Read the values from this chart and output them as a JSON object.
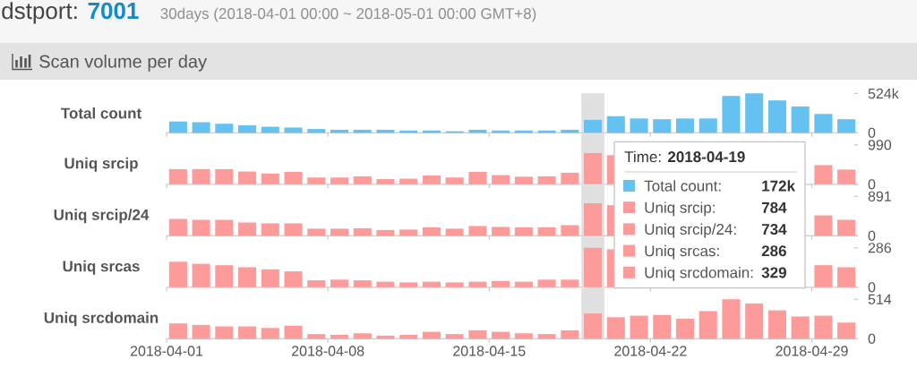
{
  "chart_data": [
    {
      "type": "bar",
      "title": "dstport: **7001**",
      "subtitle": "30days (2018-04-01 00:00 ~ 2018-05-01 00:00 GMT+8)",
      "annotations": [
        "Scan volume per day",
        "Time: **2018-04-19**",
        "Total count:",
        "172k"
      ],
      "ylabel": "Total count",
      "x": [
        "2018-04-01T12:00",
        "2018-04-02T12:00",
        "2018-04-03T12:00",
        "2018-04-04T12:00",
        "2018-04-05T12:00",
        "2018-04-06T12:00",
        "2018-04-07T12:00",
        "2018-04-08T12:00",
        "2018-04-09T12:00",
        "2018-04-10T12:00",
        "2018-04-11T12:00",
        "2018-04-12T12:00",
        "2018-04-13T12:00",
        "2018-04-14T12:00",
        "2018-04-15T12:00",
        "2018-04-16T12:00",
        "2018-04-17T12:00",
        "2018-04-18T12:00",
        "2018-04-19T12:00",
        "2018-04-20T12:00",
        "2018-04-21T12:00",
        "2018-04-22T12:00",
        "2018-04-23T12:00",
        "2018-04-24T12:00",
        "2018-04-25T12:00",
        "2018-04-26T12:00",
        "2018-04-27T12:00",
        "2018-04-28T12:00",
        "2018-04-29T12:00",
        "2018-04-30T12:00"
      ],
      "values": [
        150000,
        140000,
        120000,
        100000,
        80000,
        70000,
        50000,
        40000,
        40000,
        40000,
        30000,
        30000,
        20000,
        40000,
        30000,
        30000,
        30000,
        40000,
        172000,
        220000,
        190000,
        180000,
        190000,
        190000,
        490000,
        524000,
        430000,
        350000,
        250000,
        180000
      ],
      "color": "#64c1f0",
      "xlim": [
        "2018-04-01",
        "2018-05-01"
      ],
      "xticks": [
        "2018-04-01",
        "2018-04-08",
        "2018-04-15",
        "2018-04-22",
        "2018-04-29"
      ],
      "ylim": [
        0,
        524000
      ],
      "yticks": [
        0,
        {
          "value": 524000,
          "label": "524k"
        }
      ],
      "bands": [
        {
          "axis": "x",
          "from": "2018-04-19",
          "to": "2018-04-20",
          "color": "#e0e0e0"
        }
      ],
      "tick_labels": "y"
    },
    {
      "type": "bar",
      "annotations": [
        "Uniq srcip:",
        "784"
      ],
      "ylabel": "Uniq srcip",
      "x": [
        "2018-04-01T12:00",
        "2018-04-02T12:00",
        "2018-04-03T12:00",
        "2018-04-04T12:00",
        "2018-04-05T12:00",
        "2018-04-06T12:00",
        "2018-04-07T12:00",
        "2018-04-08T12:00",
        "2018-04-09T12:00",
        "2018-04-10T12:00",
        "2018-04-11T12:00",
        "2018-04-12T12:00",
        "2018-04-13T12:00",
        "2018-04-14T12:00",
        "2018-04-15T12:00",
        "2018-04-16T12:00",
        "2018-04-17T12:00",
        "2018-04-18T12:00",
        "2018-04-19T12:00",
        "2018-04-20T12:00",
        "2018-04-21T12:00",
        "2018-04-22T12:00",
        "2018-04-23T12:00",
        "2018-04-24T12:00",
        "2018-04-25T12:00",
        "2018-04-26T12:00",
        "2018-04-27T12:00",
        "2018-04-28T12:00",
        "2018-04-29T12:00",
        "2018-04-30T12:00"
      ],
      "values": [
        380,
        380,
        380,
        320,
        270,
        310,
        170,
        170,
        200,
        130,
        140,
        220,
        170,
        310,
        230,
        190,
        200,
        290,
        784,
        730,
        null,
        null,
        null,
        null,
        null,
        null,
        null,
        null,
        480,
        370
      ],
      "color": "#fd9a9a",
      "xlim": [
        "2018-04-01",
        "2018-05-01"
      ],
      "xticks": [
        "2018-04-01",
        "2018-04-08",
        "2018-04-15",
        "2018-04-22",
        "2018-04-29"
      ],
      "ylim": [
        0,
        990
      ],
      "yticks": [
        0,
        990
      ],
      "bands": [
        {
          "axis": "x",
          "from": "2018-04-19",
          "to": "2018-04-20",
          "color": "#e0e0e0"
        }
      ],
      "tick_labels": "y"
    },
    {
      "type": "bar",
      "annotations": [
        "Uniq srcip/24:",
        "734"
      ],
      "ylabel": "Uniq srcip/24",
      "x": [
        "2018-04-01T12:00",
        "2018-04-02T12:00",
        "2018-04-03T12:00",
        "2018-04-04T12:00",
        "2018-04-05T12:00",
        "2018-04-06T12:00",
        "2018-04-07T12:00",
        "2018-04-08T12:00",
        "2018-04-09T12:00",
        "2018-04-10T12:00",
        "2018-04-11T12:00",
        "2018-04-12T12:00",
        "2018-04-13T12:00",
        "2018-04-14T12:00",
        "2018-04-15T12:00",
        "2018-04-16T12:00",
        "2018-04-17T12:00",
        "2018-04-18T12:00",
        "2018-04-19T12:00",
        "2018-04-20T12:00",
        "2018-04-21T12:00",
        "2018-04-22T12:00",
        "2018-04-23T12:00",
        "2018-04-24T12:00",
        "2018-04-25T12:00",
        "2018-04-26T12:00",
        "2018-04-27T12:00",
        "2018-04-28T12:00",
        "2018-04-29T12:00",
        "2018-04-30T12:00"
      ],
      "values": [
        380,
        360,
        360,
        300,
        280,
        280,
        160,
        160,
        170,
        130,
        140,
        190,
        160,
        220,
        200,
        190,
        190,
        240,
        734,
        690,
        null,
        null,
        null,
        null,
        null,
        null,
        null,
        null,
        460,
        360
      ],
      "color": "#fd9a9a",
      "xlim": [
        "2018-04-01",
        "2018-05-01"
      ],
      "xticks": [
        "2018-04-01",
        "2018-04-08",
        "2018-04-15",
        "2018-04-22",
        "2018-04-29"
      ],
      "ylim": [
        0,
        891
      ],
      "yticks": [
        0,
        891
      ],
      "bands": [
        {
          "axis": "x",
          "from": "2018-04-19",
          "to": "2018-04-20",
          "color": "#e0e0e0"
        }
      ],
      "tick_labels": "y"
    },
    {
      "type": "bar",
      "annotations": [
        "Uniq srcas:",
        "286"
      ],
      "ylabel": "Uniq srcas",
      "x": [
        "2018-04-01T12:00",
        "2018-04-02T12:00",
        "2018-04-03T12:00",
        "2018-04-04T12:00",
        "2018-04-05T12:00",
        "2018-04-06T12:00",
        "2018-04-07T12:00",
        "2018-04-08T12:00",
        "2018-04-09T12:00",
        "2018-04-10T12:00",
        "2018-04-11T12:00",
        "2018-04-12T12:00",
        "2018-04-13T12:00",
        "2018-04-14T12:00",
        "2018-04-15T12:00",
        "2018-04-16T12:00",
        "2018-04-17T12:00",
        "2018-04-18T12:00",
        "2018-04-19T12:00",
        "2018-04-20T12:00",
        "2018-04-21T12:00",
        "2018-04-22T12:00",
        "2018-04-23T12:00",
        "2018-04-24T12:00",
        "2018-04-25T12:00",
        "2018-04-26T12:00",
        "2018-04-27T12:00",
        "2018-04-28T12:00",
        "2018-04-29T12:00",
        "2018-04-30T12:00"
      ],
      "values": [
        185,
        170,
        160,
        145,
        130,
        115,
        50,
        55,
        50,
        40,
        35,
        40,
        35,
        40,
        45,
        40,
        55,
        55,
        286,
        275,
        null,
        null,
        null,
        null,
        null,
        null,
        null,
        null,
        160,
        145
      ],
      "color": "#fd9a9a",
      "xlim": [
        "2018-04-01",
        "2018-05-01"
      ],
      "xticks": [
        "2018-04-01",
        "2018-04-08",
        "2018-04-15",
        "2018-04-22",
        "2018-04-29"
      ],
      "ylim": [
        0,
        286
      ],
      "yticks": [
        0,
        286
      ],
      "bands": [
        {
          "axis": "x",
          "from": "2018-04-19",
          "to": "2018-04-20",
          "color": "#e0e0e0"
        }
      ],
      "tick_labels": "y"
    },
    {
      "type": "bar",
      "annotations": [
        "Uniq srcdomain:",
        "329"
      ],
      "ylabel": "Uniq srcdomain",
      "x": [
        "2018-04-01T12:00",
        "2018-04-02T12:00",
        "2018-04-03T12:00",
        "2018-04-04T12:00",
        "2018-04-05T12:00",
        "2018-04-06T12:00",
        "2018-04-07T12:00",
        "2018-04-08T12:00",
        "2018-04-09T12:00",
        "2018-04-10T12:00",
        "2018-04-11T12:00",
        "2018-04-12T12:00",
        "2018-04-13T12:00",
        "2018-04-14T12:00",
        "2018-04-15T12:00",
        "2018-04-16T12:00",
        "2018-04-17T12:00",
        "2018-04-18T12:00",
        "2018-04-19T12:00",
        "2018-04-20T12:00",
        "2018-04-21T12:00",
        "2018-04-22T12:00",
        "2018-04-23T12:00",
        "2018-04-24T12:00",
        "2018-04-25T12:00",
        "2018-04-26T12:00",
        "2018-04-27T12:00",
        "2018-04-28T12:00",
        "2018-04-29T12:00",
        "2018-04-30T12:00"
      ],
      "values": [
        200,
        180,
        160,
        160,
        140,
        170,
        60,
        50,
        70,
        40,
        50,
        90,
        60,
        110,
        90,
        70,
        60,
        110,
        329,
        280,
        300,
        310,
        260,
        360,
        514,
        460,
        370,
        290,
        300,
        210
      ],
      "color": "#fd9a9a",
      "xlim": [
        "2018-04-01",
        "2018-05-01"
      ],
      "xticks": [
        "2018-04-01",
        "2018-04-08",
        "2018-04-15",
        "2018-04-22",
        "2018-04-29"
      ],
      "ylim": [
        0,
        514
      ],
      "yticks": [
        0,
        514
      ],
      "bands": [
        {
          "axis": "x",
          "from": "2018-04-19",
          "to": "2018-04-20",
          "color": "#e0e0e0"
        }
      ]
    }
  ]
}
